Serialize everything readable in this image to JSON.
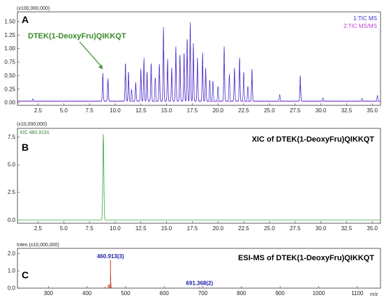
{
  "chart_data": [
    {
      "type": "line",
      "panel_letter": "A",
      "multiplier_label": "(x100,000,000)",
      "xlim": [
        0.5,
        35.8
      ],
      "ylim": [
        -0.05,
        1.68
      ],
      "x_ticks": [
        2.5,
        5.0,
        7.5,
        10.0,
        12.5,
        15.0,
        17.5,
        20.0,
        22.5,
        25.0,
        27.5,
        30.0,
        32.5,
        35.0
      ],
      "y_ticks": [
        0.0,
        0.25,
        0.5,
        0.75,
        1.0,
        1.25,
        1.5
      ],
      "annotation": "DTEK(1-DeoxyFru)QIKKQT",
      "annotation_x": 8.8,
      "series": [
        {
          "name": "1:TIC MS",
          "color": "#3b2fc9",
          "baseline": 0.03,
          "peaks": [
            [
              2.0,
              0.04
            ],
            [
              8.8,
              0.52
            ],
            [
              9.3,
              0.42
            ],
            [
              11.0,
              0.72
            ],
            [
              11.3,
              0.55
            ],
            [
              11.6,
              0.22
            ],
            [
              12.0,
              0.35
            ],
            [
              12.5,
              0.6
            ],
            [
              12.8,
              0.8
            ],
            [
              13.1,
              0.55
            ],
            [
              13.5,
              0.72
            ],
            [
              13.9,
              0.45
            ],
            [
              14.3,
              0.7
            ],
            [
              14.7,
              1.38
            ],
            [
              15.1,
              0.78
            ],
            [
              15.5,
              0.62
            ],
            [
              15.9,
              1.02
            ],
            [
              16.3,
              0.88
            ],
            [
              16.7,
              0.92
            ],
            [
              17.0,
              1.18
            ],
            [
              17.3,
              1.48
            ],
            [
              17.6,
              1.08
            ],
            [
              18.0,
              0.8
            ],
            [
              18.5,
              0.9
            ],
            [
              18.8,
              0.62
            ],
            [
              19.2,
              0.4
            ],
            [
              19.5,
              0.38
            ],
            [
              20.0,
              0.28
            ],
            [
              20.6,
              1.02
            ],
            [
              21.1,
              0.5
            ],
            [
              21.6,
              0.62
            ],
            [
              22.1,
              0.82
            ],
            [
              22.5,
              0.55
            ],
            [
              22.9,
              0.28
            ],
            [
              23.3,
              0.6
            ],
            [
              26.0,
              0.12
            ],
            [
              28.0,
              0.48
            ],
            [
              30.2,
              0.06
            ],
            [
              34.0,
              0.05
            ],
            [
              35.5,
              0.1
            ]
          ]
        },
        {
          "name": "2:TIC MS/MS",
          "color": "#c040d8",
          "baseline": 0.02,
          "peaks": [
            [
              8.8,
              0.45
            ],
            [
              9.3,
              0.38
            ],
            [
              11.0,
              0.5
            ],
            [
              11.3,
              0.4
            ],
            [
              12.0,
              0.28
            ],
            [
              12.5,
              0.45
            ],
            [
              12.8,
              0.58
            ],
            [
              13.1,
              0.42
            ],
            [
              13.5,
              0.52
            ],
            [
              14.3,
              0.5
            ],
            [
              14.7,
              0.95
            ],
            [
              15.1,
              0.6
            ],
            [
              15.5,
              0.5
            ],
            [
              15.9,
              0.75
            ],
            [
              16.3,
              0.65
            ],
            [
              16.7,
              0.7
            ],
            [
              17.0,
              0.85
            ],
            [
              17.3,
              1.05
            ],
            [
              17.6,
              0.8
            ],
            [
              18.0,
              0.6
            ],
            [
              18.5,
              0.65
            ],
            [
              18.8,
              0.45
            ],
            [
              20.6,
              0.7
            ],
            [
              21.6,
              0.45
            ],
            [
              22.1,
              0.58
            ],
            [
              23.3,
              0.4
            ],
            [
              28.0,
              0.3
            ]
          ]
        }
      ]
    },
    {
      "type": "line",
      "panel_letter": "B",
      "title": "XIC of DTEK(1-DeoxyFru)QIKKQT",
      "multiplier_label": "(x10,000,000)",
      "xlim": [
        0.5,
        35.8
      ],
      "ylim": [
        -0.3,
        8.3
      ],
      "x_ticks": [
        2.5,
        5.0,
        7.5,
        10.0,
        12.5,
        15.0,
        17.5,
        20.0,
        22.5,
        25.0,
        27.5,
        30.0,
        32.5,
        35.0
      ],
      "y_ticks": [
        0.0,
        2.5,
        5.0,
        7.5
      ],
      "series": [
        {
          "name": "XIC 460.9131",
          "color": "#39a83a",
          "baseline": 0.0,
          "peaks": [
            [
              8.85,
              7.8
            ]
          ]
        }
      ]
    },
    {
      "type": "bar",
      "panel_letter": "C",
      "title": "ESI-MS of DTEK(1-DeoxyFru)QIKKQT",
      "multiplier_label": "Inten.(x10,000,000)",
      "xlabel": "m/z",
      "xlim": [
        220,
        1160
      ],
      "ylim": [
        0,
        2.3
      ],
      "x_ticks": [
        300,
        400,
        500,
        600,
        700,
        800,
        900,
        1000,
        1100
      ],
      "y_ticks": [
        0.0,
        1.0,
        2.0
      ],
      "color": "#c0392b",
      "peaks": [
        [
          447.0,
          0.08
        ],
        [
          455.0,
          0.18
        ],
        [
          458.0,
          0.22
        ],
        [
          460.9,
          1.62
        ],
        [
          461.4,
          0.7
        ],
        [
          461.9,
          0.3
        ],
        [
          462.4,
          0.12
        ],
        [
          691.4,
          0.06
        ],
        [
          692.0,
          0.03
        ]
      ],
      "peak_labels": [
        {
          "x": 460.9,
          "y": 1.62,
          "text": "460.913(3)"
        },
        {
          "x": 691.4,
          "y": 0.06,
          "text": "691.368(2)"
        }
      ]
    }
  ]
}
